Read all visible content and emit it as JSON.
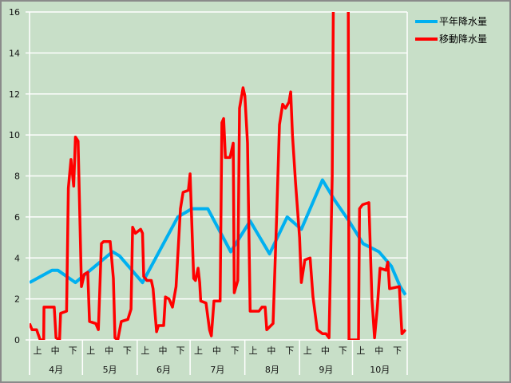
{
  "chart_data": {
    "type": "line",
    "title": "",
    "xlabel": "",
    "ylabel": "",
    "ylim": [
      0,
      16
    ],
    "yticks": [
      "0",
      "2",
      "4",
      "6",
      "8",
      "10",
      "12",
      "14",
      "16"
    ],
    "grid": true,
    "legend_position": "top-right",
    "x_unit": "day index from April 1 (0-213)",
    "months": [
      {
        "label": "4月",
        "days": 30
      },
      {
        "label": "5月",
        "days": 31
      },
      {
        "label": "6月",
        "days": 30
      },
      {
        "label": "7月",
        "days": 31
      },
      {
        "label": "8月",
        "days": 31
      },
      {
        "label": "9月",
        "days": 30
      },
      {
        "label": "10月",
        "days": 31
      }
    ],
    "dekads": [
      "上",
      "中",
      "下"
    ],
    "series": [
      {
        "name": "平年降水量",
        "color": "#00b0f0",
        "points": [
          [
            0,
            2.8
          ],
          [
            12.7,
            3.4
          ],
          [
            16,
            3.4
          ],
          [
            26,
            2.8
          ],
          [
            47,
            4.3
          ],
          [
            51,
            4.1
          ],
          [
            64,
            2.8
          ],
          [
            84,
            6.0
          ],
          [
            92,
            6.4
          ],
          [
            101,
            6.4
          ],
          [
            114,
            4.3
          ],
          [
            125,
            5.8
          ],
          [
            136,
            4.2
          ],
          [
            146,
            6.0
          ],
          [
            154,
            5.4
          ],
          [
            166,
            7.8
          ],
          [
            173,
            6.8
          ],
          [
            181,
            5.8
          ],
          [
            189,
            4.7
          ],
          [
            198,
            4.3
          ],
          [
            205,
            3.6
          ],
          [
            210,
            2.6
          ],
          [
            213,
            2.2
          ]
        ]
      },
      {
        "name": "移動降水量",
        "color": "#ff0000",
        "points": [
          [
            0,
            0.8
          ],
          [
            1.4,
            0.5
          ],
          [
            4,
            0.5
          ],
          [
            6,
            0
          ],
          [
            8,
            0
          ],
          [
            8.2,
            1.6
          ],
          [
            14,
            1.6
          ],
          [
            15,
            0.1
          ],
          [
            17,
            0
          ],
          [
            17.6,
            1.3
          ],
          [
            21,
            1.4
          ],
          [
            22,
            7.4
          ],
          [
            23.5,
            8.8
          ],
          [
            25,
            7.5
          ],
          [
            26,
            9.9
          ],
          [
            27.5,
            9.7
          ],
          [
            29.4,
            2.6
          ],
          [
            31,
            3.2
          ],
          [
            33,
            3.3
          ],
          [
            34,
            0.9
          ],
          [
            37.5,
            0.8
          ],
          [
            39,
            0.5
          ],
          [
            40.7,
            4.7
          ],
          [
            42,
            4.8
          ],
          [
            45.7,
            4.8
          ],
          [
            47.5,
            3.0
          ],
          [
            48.4,
            0.1
          ],
          [
            50,
            0
          ],
          [
            52,
            0.9
          ],
          [
            55.7,
            1.0
          ],
          [
            57.5,
            1.5
          ],
          [
            58.4,
            5.5
          ],
          [
            60,
            5.2
          ],
          [
            63,
            5.4
          ],
          [
            64,
            5.2
          ],
          [
            64.7,
            3.1
          ],
          [
            66.5,
            2.9
          ],
          [
            69,
            2.9
          ],
          [
            70,
            2.5
          ],
          [
            72,
            0.4
          ],
          [
            73,
            0.7
          ],
          [
            76,
            0.7
          ],
          [
            77,
            2.1
          ],
          [
            79,
            2.0
          ],
          [
            81,
            1.6
          ],
          [
            83,
            2.6
          ],
          [
            85.5,
            6.4
          ],
          [
            87,
            7.2
          ],
          [
            90,
            7.3
          ],
          [
            91,
            8.1
          ],
          [
            93,
            3.0
          ],
          [
            94,
            2.9
          ],
          [
            95.5,
            3.5
          ],
          [
            96.4,
            2.8
          ],
          [
            97,
            1.9
          ],
          [
            100,
            1.8
          ],
          [
            102,
            0.5
          ],
          [
            103,
            0.2
          ],
          [
            104.5,
            1.9
          ],
          [
            108,
            1.9
          ],
          [
            109,
            10.6
          ],
          [
            110,
            10.8
          ],
          [
            111,
            8.9
          ],
          [
            113.6,
            8.9
          ],
          [
            115.4,
            9.6
          ],
          [
            116,
            2.3
          ],
          [
            118,
            2.9
          ],
          [
            119,
            11.3
          ],
          [
            121,
            12.3
          ],
          [
            122,
            11.9
          ],
          [
            123.5,
            9.6
          ],
          [
            125,
            1.4
          ],
          [
            130,
            1.4
          ],
          [
            131.7,
            1.6
          ],
          [
            133.5,
            1.6
          ],
          [
            134.4,
            0.5
          ],
          [
            138,
            0.8
          ],
          [
            140,
            5.9
          ],
          [
            141.6,
            10.5
          ],
          [
            143.4,
            11.5
          ],
          [
            145,
            11.3
          ],
          [
            147,
            11.6
          ],
          [
            148,
            12.1
          ],
          [
            149,
            10.0
          ],
          [
            150.7,
            7.7
          ],
          [
            153,
            5.0
          ],
          [
            154,
            2.8
          ],
          [
            156,
            3.9
          ],
          [
            159,
            4.0
          ],
          [
            160.6,
            2.1
          ],
          [
            163,
            0.5
          ],
          [
            166,
            0.3
          ],
          [
            168,
            0.3
          ],
          [
            169.7,
            0.1
          ],
          [
            171.5,
            8.0
          ],
          [
            172.4,
            20
          ],
          [
            180.5,
            20
          ],
          [
            181,
            0
          ],
          [
            186.4,
            0
          ],
          [
            187,
            6.4
          ],
          [
            188.7,
            6.6
          ],
          [
            192.3,
            6.7
          ],
          [
            194,
            2.0
          ],
          [
            195.5,
            0.1
          ],
          [
            197,
            1.5
          ],
          [
            198.6,
            3.5
          ],
          [
            202,
            3.4
          ],
          [
            203,
            3.8
          ],
          [
            204,
            2.5
          ],
          [
            209.5,
            2.6
          ],
          [
            211,
            0.3
          ],
          [
            213,
            0.5
          ]
        ]
      }
    ]
  }
}
